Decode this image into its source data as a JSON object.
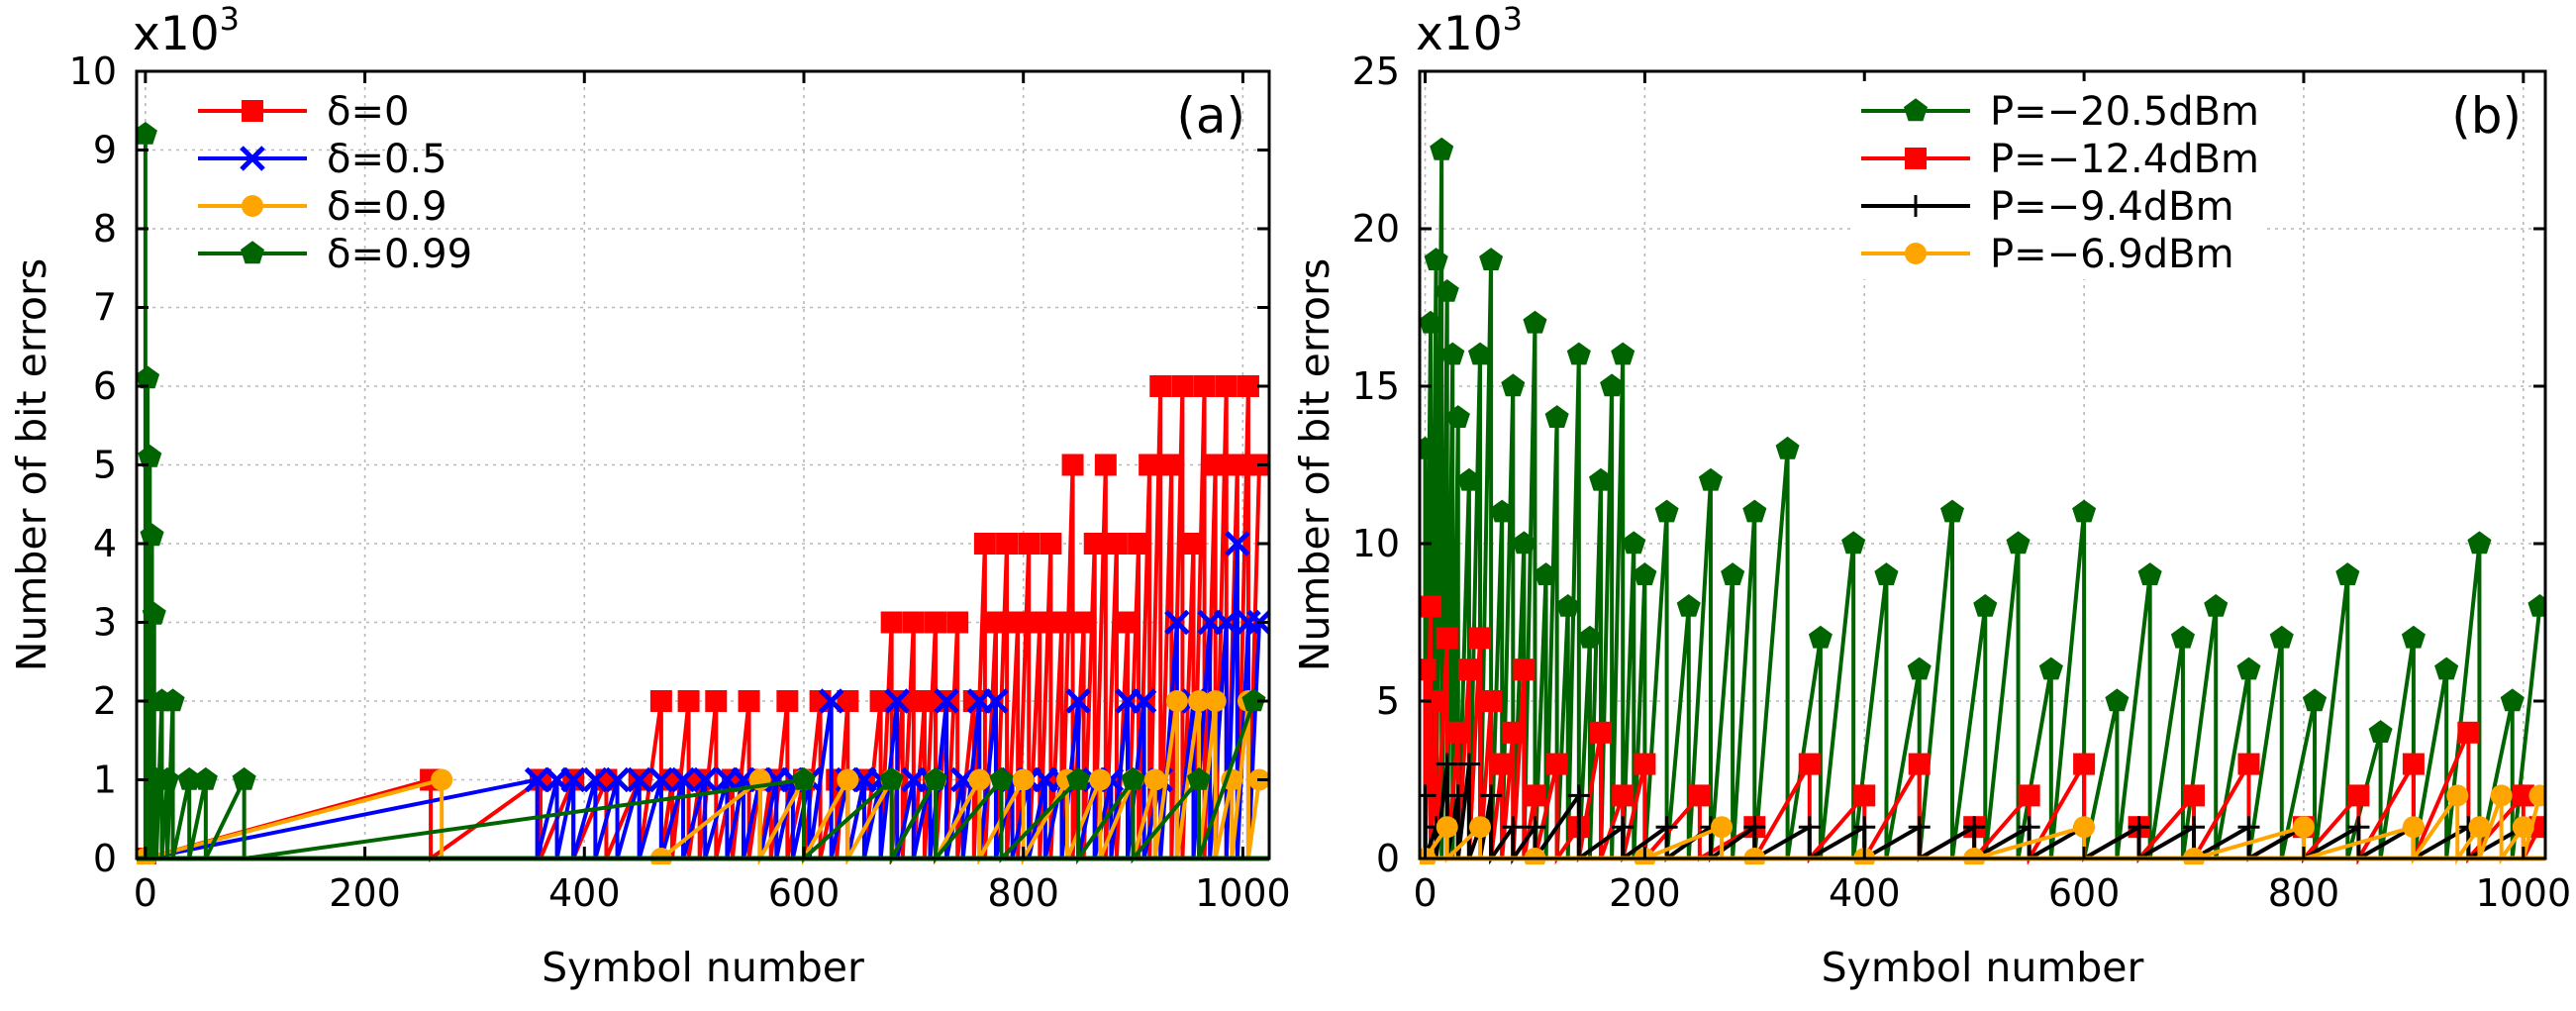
{
  "chart_data": [
    {
      "type": "line",
      "panel_label": "(a)",
      "multiplier": "x10",
      "multiplier_exp": "3",
      "xlabel": "Symbol number",
      "ylabel": "Number of bit errors",
      "xlim": [
        -8,
        1024
      ],
      "ylim": [
        0,
        10
      ],
      "xticks": [
        0,
        200,
        400,
        600,
        800,
        1000
      ],
      "yticks": [
        0,
        1,
        2,
        3,
        4,
        5,
        6,
        7,
        8,
        9,
        10
      ],
      "legend_position": "top-left",
      "grid": true,
      "series": [
        {
          "name": "δ=0",
          "color": "#ff0000",
          "marker": "square",
          "x": [
            0,
            260,
            360,
            390,
            420,
            450,
            470,
            480,
            495,
            505,
            520,
            535,
            550,
            560,
            570,
            585,
            600,
            615,
            630,
            640,
            655,
            670,
            680,
            690,
            700,
            710,
            720,
            730,
            740,
            755,
            765,
            775,
            785,
            795,
            805,
            815,
            825,
            835,
            845,
            855,
            865,
            875,
            885,
            895,
            905,
            915,
            925,
            935,
            945,
            955,
            965,
            975,
            985,
            995,
            1005,
            1015
          ],
          "values": [
            0,
            1,
            1,
            1,
            1,
            1,
            2,
            1,
            2,
            1,
            2,
            1,
            2,
            1,
            1,
            2,
            1,
            2,
            1,
            2,
            1,
            2,
            3,
            2,
            3,
            2,
            3,
            2,
            3,
            2,
            4,
            3,
            4,
            3,
            4,
            3,
            4,
            3,
            5,
            3,
            4,
            5,
            4,
            3,
            4,
            5,
            6,
            5,
            6,
            4,
            6,
            5,
            6,
            5,
            6,
            5
          ]
        },
        {
          "name": "δ=0.5",
          "color": "#0000ff",
          "marker": "cross",
          "x": [
            0,
            357,
            375,
            390,
            410,
            430,
            450,
            470,
            490,
            510,
            530,
            545,
            560,
            575,
            590,
            605,
            625,
            640,
            655,
            670,
            685,
            700,
            715,
            730,
            745,
            760,
            775,
            790,
            805,
            820,
            835,
            850,
            865,
            880,
            895,
            910,
            925,
            940,
            955,
            970,
            985,
            995,
            1005,
            1015
          ],
          "values": [
            0,
            1,
            1,
            1,
            1,
            1,
            1,
            1,
            1,
            1,
            1,
            1,
            1,
            1,
            1,
            1,
            2,
            1,
            1,
            1,
            2,
            1,
            1,
            2,
            1,
            2,
            2,
            1,
            1,
            1,
            1,
            2,
            1,
            1,
            2,
            2,
            1,
            3,
            2,
            3,
            3,
            4,
            3,
            3
          ]
        },
        {
          "name": "δ=0.9",
          "color": "#ffa500",
          "marker": "circle",
          "x": [
            0,
            270,
            470,
            560,
            600,
            640,
            680,
            720,
            760,
            800,
            840,
            870,
            900,
            920,
            940,
            960,
            975,
            990,
            1005,
            1015
          ],
          "values": [
            0,
            1,
            0,
            1,
            1,
            1,
            1,
            1,
            1,
            1,
            1,
            1,
            1,
            1,
            2,
            2,
            2,
            1,
            2,
            1
          ]
        },
        {
          "name": "δ=0.99",
          "color": "#006400",
          "marker": "pentagon",
          "x": [
            0,
            2,
            4,
            6,
            8,
            10,
            15,
            20,
            25,
            40,
            55,
            90,
            600,
            680,
            720,
            780,
            850,
            900,
            960,
            1010
          ],
          "values": [
            9.2,
            6.1,
            5.1,
            4.1,
            3.1,
            1,
            2,
            1,
            2,
            1,
            1,
            1,
            1,
            1,
            1,
            1,
            1,
            1,
            1,
            2
          ]
        }
      ]
    },
    {
      "type": "line",
      "panel_label": "(b)",
      "multiplier": "x10",
      "multiplier_exp": "3",
      "xlabel": "Symbol number",
      "ylabel": "Number of bit errors",
      "xlim": [
        -5,
        1020
      ],
      "ylim": [
        0,
        25
      ],
      "xticks": [
        0,
        200,
        400,
        600,
        800,
        1000
      ],
      "yticks": [
        0,
        5,
        10,
        15,
        20,
        25
      ],
      "legend_position": "top-right",
      "grid": true,
      "series": [
        {
          "name": "P=−20.5dBm",
          "color": "#006400",
          "marker": "pentagon",
          "x": [
            0,
            5,
            10,
            15,
            20,
            25,
            30,
            40,
            50,
            60,
            70,
            80,
            90,
            100,
            110,
            120,
            130,
            140,
            150,
            160,
            170,
            180,
            190,
            200,
            220,
            240,
            260,
            280,
            300,
            330,
            360,
            390,
            420,
            450,
            480,
            510,
            540,
            570,
            600,
            630,
            660,
            690,
            720,
            750,
            780,
            810,
            840,
            870,
            900,
            930,
            960,
            990,
            1015
          ],
          "values": [
            13,
            17,
            19,
            22.5,
            18,
            16,
            14,
            12,
            16,
            19,
            11,
            15,
            10,
            17,
            9,
            14,
            8,
            16,
            7,
            12,
            15,
            16,
            10,
            9,
            11,
            8,
            12,
            9,
            11,
            13,
            7,
            10,
            9,
            6,
            11,
            8,
            10,
            6,
            11,
            5,
            9,
            7,
            8,
            6,
            7,
            5,
            9,
            4,
            7,
            6,
            10,
            5,
            8
          ]
        },
        {
          "name": "P=−12.4dBm",
          "color": "#ff0000",
          "marker": "square",
          "x": [
            0,
            5,
            10,
            20,
            30,
            40,
            50,
            60,
            70,
            80,
            90,
            100,
            120,
            140,
            160,
            180,
            200,
            250,
            300,
            350,
            400,
            450,
            500,
            550,
            600,
            650,
            700,
            750,
            800,
            850,
            900,
            950,
            1000,
            1015
          ],
          "values": [
            6,
            8,
            5,
            7,
            4,
            6,
            7,
            5,
            3,
            4,
            6,
            2,
            3,
            1,
            4,
            2,
            3,
            2,
            1,
            3,
            2,
            3,
            1,
            2,
            3,
            1,
            2,
            3,
            1,
            2,
            3,
            4,
            2,
            1
          ]
        },
        {
          "name": "P=−9.4dBm",
          "color": "#000000",
          "marker": "plus",
          "x": [
            0,
            10,
            20,
            30,
            40,
            50,
            60,
            80,
            100,
            140,
            180,
            220,
            260,
            300,
            350,
            400,
            450,
            500,
            550,
            600,
            650,
            700,
            750,
            800,
            850,
            900,
            950,
            1000
          ],
          "values": [
            2,
            1,
            3,
            2,
            3,
            1,
            2,
            1,
            1,
            2,
            1,
            1,
            1,
            1,
            1,
            1,
            1,
            1,
            1,
            1,
            1,
            1,
            1,
            1,
            1,
            1,
            1,
            1
          ]
        },
        {
          "name": "P=−6.9dBm",
          "color": "#ffa500",
          "marker": "circle",
          "x": [
            0,
            20,
            50,
            100,
            200,
            270,
            300,
            400,
            500,
            600,
            700,
            800,
            900,
            940,
            960,
            980,
            1000,
            1015
          ],
          "values": [
            0,
            1,
            1,
            0,
            0,
            1,
            0,
            0,
            0,
            1,
            0,
            1,
            1,
            2,
            1,
            2,
            1,
            2
          ]
        }
      ]
    }
  ]
}
